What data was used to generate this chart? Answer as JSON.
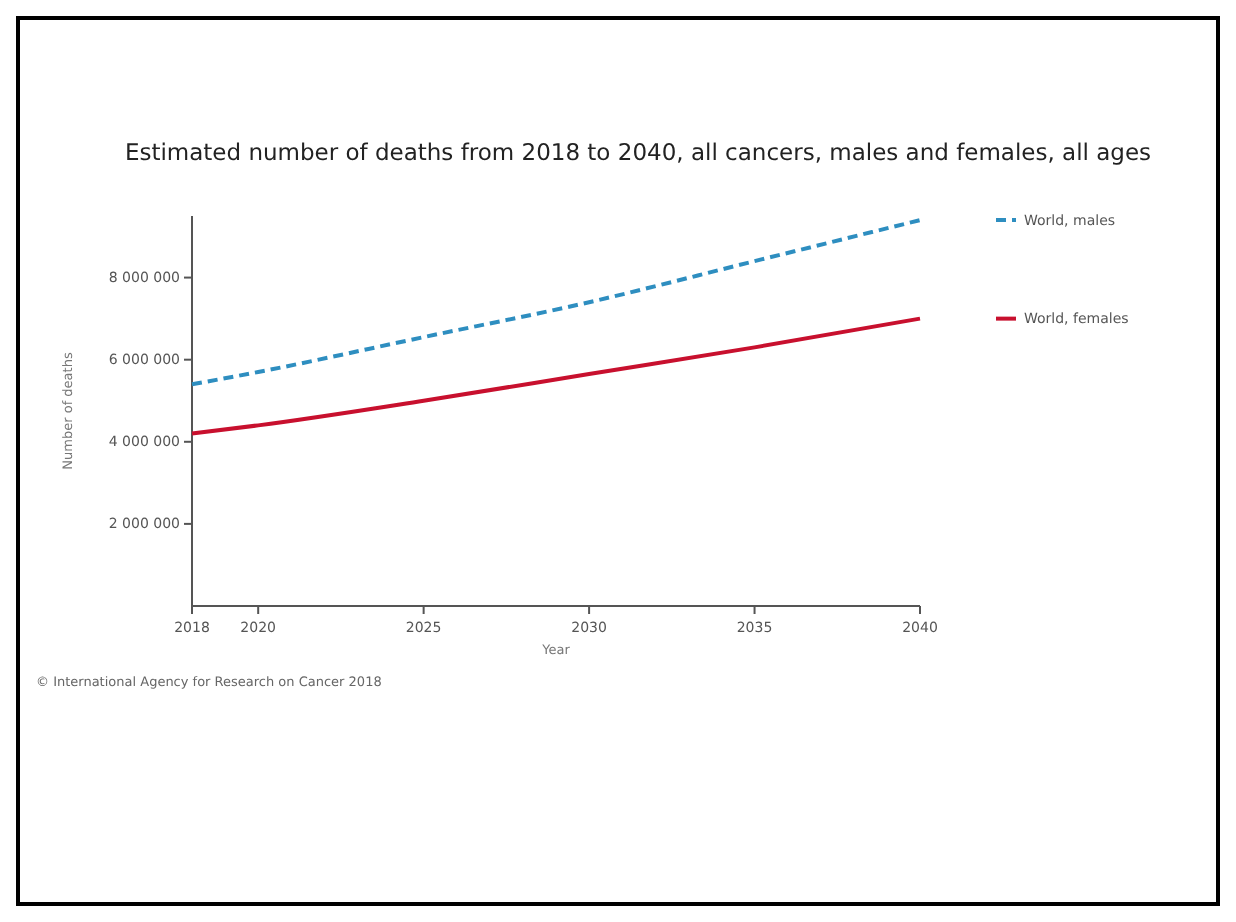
{
  "chart_data": {
    "type": "line",
    "title": "Estimated number of deaths from 2018 to 2040, all cancers, males and females, all ages",
    "xlabel": "Year",
    "ylabel": "Number of deaths",
    "x": [
      2018,
      2020,
      2025,
      2030,
      2035,
      2040
    ],
    "series": [
      {
        "name": "World, males",
        "color": "#2e8ec0",
        "line_style": "dashed",
        "values": [
          5400000,
          5700000,
          6550000,
          7400000,
          8400000,
          9400000
        ]
      },
      {
        "name": "World, females",
        "color": "#c8102e",
        "line_style": "solid",
        "values": [
          4200000,
          4400000,
          5000000,
          5650000,
          6300000,
          7000000
        ]
      }
    ],
    "xlim": [
      2018,
      2040
    ],
    "xticks": [
      2018,
      2020,
      2025,
      2030,
      2035,
      2040
    ],
    "ylim": [
      0,
      9500000
    ],
    "yticks": [
      {
        "value": 2000000,
        "label": "2 000 000"
      },
      {
        "value": 4000000,
        "label": "4 000 000"
      },
      {
        "value": 6000000,
        "label": "6 000 000"
      },
      {
        "value": 8000000,
        "label": "8 000 000"
      }
    ],
    "grid": false,
    "legend": "right",
    "marker": "none",
    "annotations": [
      "© International Agency for Research on Cancer 2018"
    ]
  }
}
